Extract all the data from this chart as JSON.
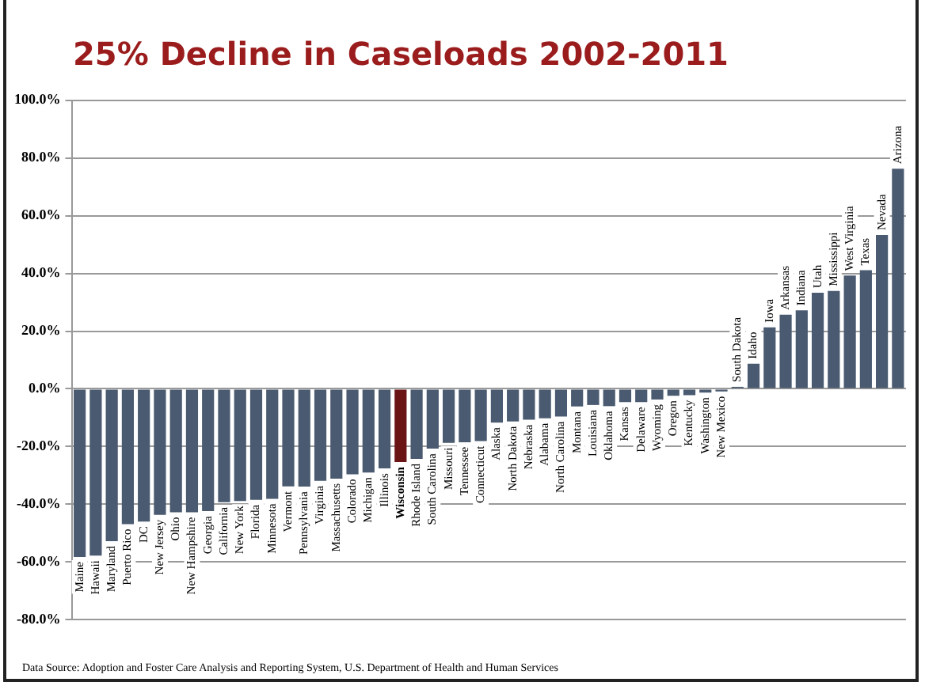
{
  "chart_data": {
    "type": "bar",
    "title": "25% Decline in Caseloads 2002-2011",
    "categories": [
      "Maine",
      "Hawaii",
      "Maryland",
      "Puerto Rico",
      "DC",
      "New Jersey",
      "Ohio",
      "New Hampshire",
      "Georgia",
      "California",
      "New York",
      "Florida",
      "Minnesota",
      "Vermont",
      "Pennsylvania",
      "Virginia",
      "Massachusetts",
      "Colorado",
      "Michigan",
      "Illinois",
      "Wisconsin",
      "Rhode Island",
      "South Carolina",
      "Missouri",
      "Tennessee",
      "Connecticut",
      "Alaska",
      "North Dakota",
      "Nebraska",
      "Alabama",
      "North Carolina",
      "Montana",
      "Louisiana",
      "Oklahoma",
      "Kansas",
      "Delaware",
      "Wyoming",
      "Oregon",
      "Kentucky",
      "Washington",
      "New Mexico",
      "South Dakota",
      "Idaho",
      "Iowa",
      "Arkansas",
      "Indiana",
      "Utah",
      "Mississippi",
      "West Virginia",
      "Texas",
      "Nevada",
      "Arizona"
    ],
    "values": [
      -58.3,
      -57.8,
      -52.8,
      -46.9,
      -46,
      -43.7,
      -42.8,
      -42.8,
      -42.4,
      -39.3,
      -38.9,
      -38.5,
      -38.1,
      -33.8,
      -33.9,
      -31.9,
      -31.1,
      -29.6,
      -29,
      -27.6,
      -25.4,
      -24.3,
      -20.7,
      -18.7,
      -18.5,
      -18.1,
      -11.7,
      -11.3,
      -10.7,
      -10.2,
      -9.6,
      -6.1,
      -5.6,
      -6,
      -4.6,
      -4.6,
      -3.7,
      -2.4,
      -2.2,
      -1.3,
      -0.9,
      0.7,
      8.7,
      21.3,
      25.7,
      27.2,
      33.3,
      33.9,
      39.3,
      41.1,
      53.3,
      76.3
    ],
    "colors": [
      "#4a5a70",
      "#4a5a70",
      "#4a5a70",
      "#4a5a70",
      "#4a5a70",
      "#4a5a70",
      "#4a5a70",
      "#4a5a70",
      "#4a5a70",
      "#4a5a70",
      "#4a5a70",
      "#4a5a70",
      "#4a5a70",
      "#4a5a70",
      "#4a5a70",
      "#4a5a70",
      "#4a5a70",
      "#4a5a70",
      "#4a5a70",
      "#4a5a70",
      "#6b1416",
      "#4a5a70",
      "#4a5a70",
      "#4a5a70",
      "#4a5a70",
      "#4a5a70",
      "#4a5a70",
      "#4a5a70",
      "#4a5a70",
      "#4a5a70",
      "#4a5a70",
      "#4a5a70",
      "#4a5a70",
      "#4a5a70",
      "#4a5a70",
      "#4a5a70",
      "#4a5a70",
      "#4a5a70",
      "#4a5a70",
      "#4a5a70",
      "#4a5a70",
      "#4a5a70",
      "#4a5a70",
      "#4a5a70",
      "#4a5a70",
      "#4a5a70",
      "#4a5a70",
      "#4a5a70",
      "#4a5a70",
      "#4a5a70",
      "#4a5a70",
      "#4a5a70"
    ],
    "ylim": [
      -80,
      100
    ],
    "yticks": [
      {
        "value": -80,
        "label": "-80.0%"
      },
      {
        "value": -60,
        "label": "-60.0%"
      },
      {
        "value": -40,
        "label": "-40.0%"
      },
      {
        "value": -20,
        "label": "-20.0%"
      },
      {
        "value": 0,
        "label": "0.0%"
      },
      {
        "value": 20,
        "label": "20.0%"
      },
      {
        "value": 40,
        "label": "40.0%"
      },
      {
        "value": 60,
        "label": "60.0%"
      },
      {
        "value": 80,
        "label": "80.0%"
      },
      {
        "value": 100,
        "label": "100.0%"
      }
    ],
    "grid": "y",
    "annotations": [
      "Data Source: Adoption and Foster Care Analysis and Reporting System, U.S. Department of Health and Human Services"
    ]
  }
}
